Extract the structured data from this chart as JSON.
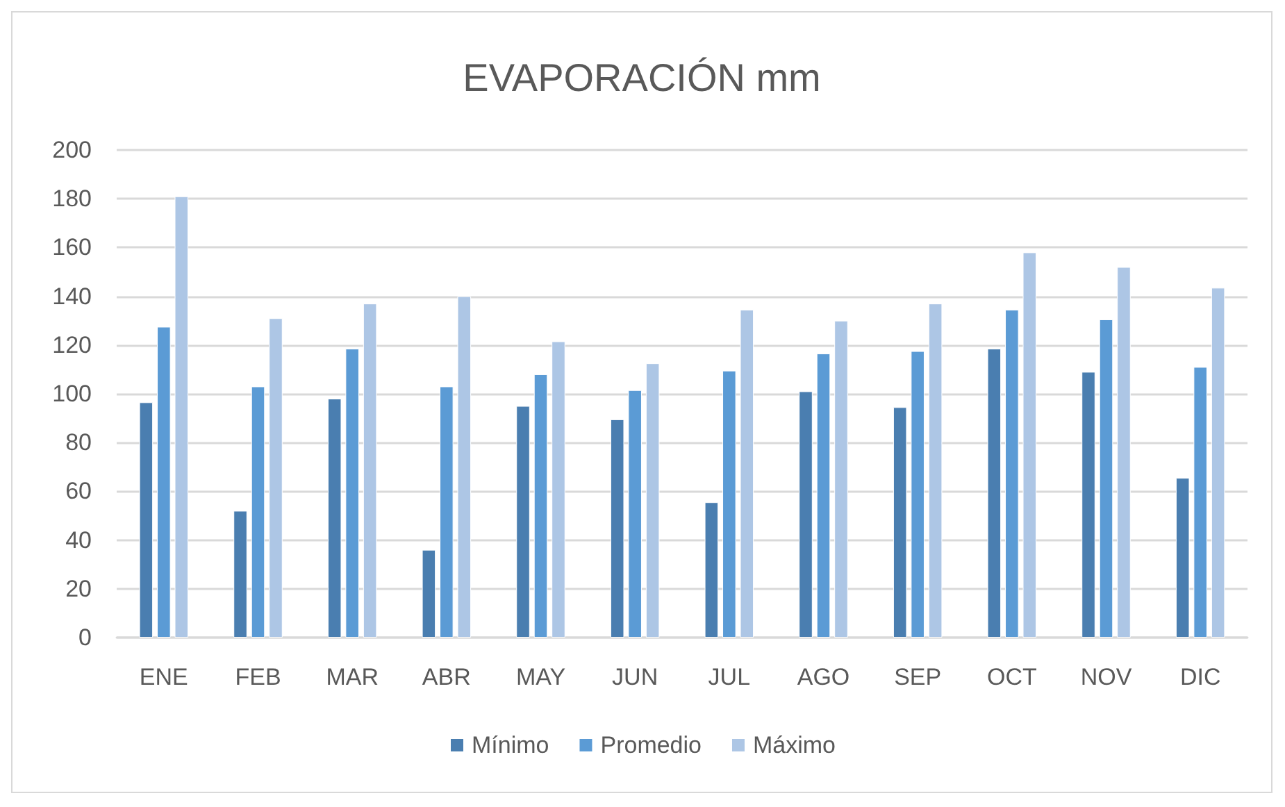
{
  "chart_data": {
    "type": "bar",
    "title": "EVAPORACIÓN mm",
    "categories": [
      "ENE",
      "FEB",
      "MAR",
      "ABR",
      "MAY",
      "JUN",
      "JUL",
      "AGO",
      "SEP",
      "OCT",
      "NOV",
      "DIC"
    ],
    "series": [
      {
        "name": "Mínimo",
        "color": "#4a7eb0",
        "values": [
          96.5,
          52,
          98,
          36,
          95,
          89.5,
          55.5,
          101,
          94.5,
          118.5,
          109,
          65.5
        ]
      },
      {
        "name": "Promedio",
        "color": "#5b9bd5",
        "values": [
          127.5,
          103,
          118.5,
          103,
          108,
          101.5,
          109.5,
          116.5,
          117.5,
          134.5,
          130.5,
          111
        ]
      },
      {
        "name": "Máximo",
        "color": "#adc6e5",
        "values": [
          181,
          131,
          137,
          140,
          121.5,
          112.5,
          134.5,
          130,
          137,
          158,
          152,
          143.5
        ]
      }
    ],
    "ylim": [
      0,
      200
    ],
    "yticks": [
      0,
      20,
      40,
      60,
      80,
      100,
      120,
      140,
      160,
      180,
      200
    ],
    "grid": "y",
    "legend": "bottom"
  }
}
